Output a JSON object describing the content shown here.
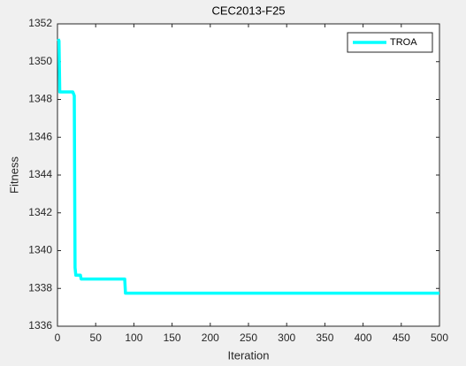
{
  "chart_data": {
    "type": "line",
    "title": "CEC2013-F25",
    "xlabel": "Iteration",
    "ylabel": "Fitness",
    "x": [
      1,
      2,
      3,
      20,
      21,
      22,
      23,
      24,
      30,
      31,
      88,
      89,
      500
    ],
    "series": [
      {
        "name": "TROA",
        "color": "#00ffff",
        "values": [
          1351.2,
          1351.1,
          1348.4,
          1348.4,
          1348.3,
          1348.2,
          1339.1,
          1338.7,
          1338.7,
          1338.5,
          1338.5,
          1337.75,
          1337.75
        ]
      }
    ],
    "xlim": [
      0,
      500
    ],
    "xticks": [
      0,
      50,
      100,
      150,
      200,
      250,
      300,
      350,
      400,
      450,
      500
    ],
    "ylim": [
      1336,
      1352
    ],
    "yticks": [
      1336,
      1338,
      1340,
      1342,
      1344,
      1346,
      1348,
      1350,
      1352
    ],
    "grid": false,
    "legend": "northeast"
  }
}
